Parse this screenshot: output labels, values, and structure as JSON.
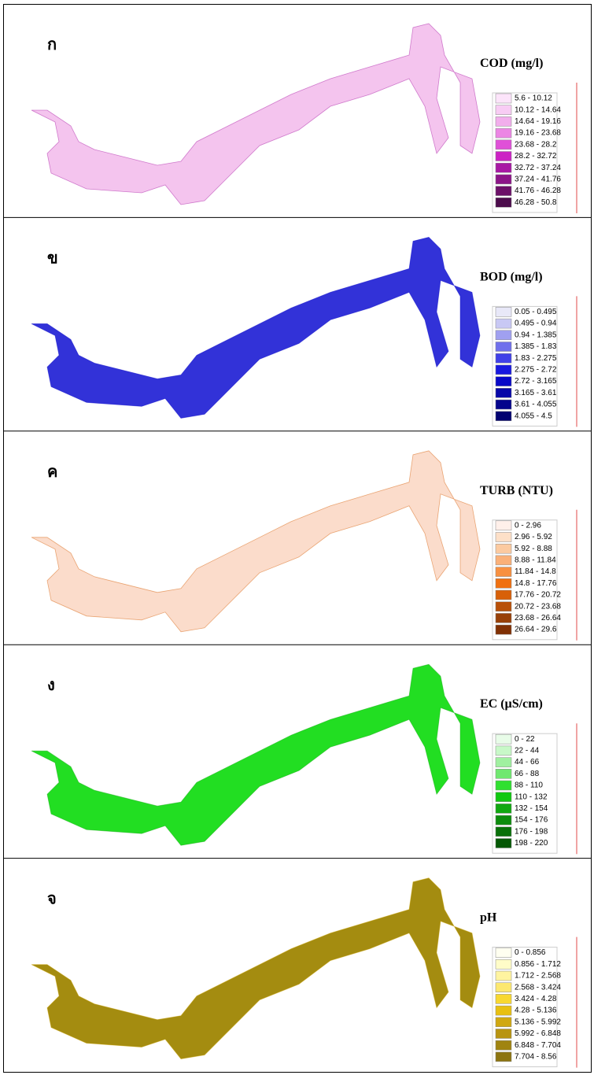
{
  "panels": [
    {
      "label": "ก",
      "title": "COD (mg/l)",
      "map_color": "#f4c4ee",
      "legend": [
        {
          "label": "5.6 - 10.12",
          "color": "#fce4fa"
        },
        {
          "label": "10.12 - 14.64",
          "color": "#f8ccf4"
        },
        {
          "label": "14.64 - 19.16",
          "color": "#f2aeec"
        },
        {
          "label": "19.16 - 23.68",
          "color": "#ec86e4"
        },
        {
          "label": "23.68 - 28.2",
          "color": "#e050d8"
        },
        {
          "label": "28.2 - 32.72",
          "color": "#cc22c4"
        },
        {
          "label": "32.72 - 37.24",
          "color": "#a818a4"
        },
        {
          "label": "37.24 - 41.76",
          "color": "#8c1488"
        },
        {
          "label": "41.76 - 46.28",
          "color": "#6c1068"
        },
        {
          "label": "46.28 - 50.8",
          "color": "#4c0c4c"
        }
      ]
    },
    {
      "label": "ข",
      "title": "BOD (mg/l)",
      "map_color": "#3232d8",
      "legend": [
        {
          "label": "0.05 - 0.495",
          "color": "#e8e8f8"
        },
        {
          "label": "0.495 - 0.94",
          "color": "#c8c8f4"
        },
        {
          "label": "0.94 - 1.385",
          "color": "#a0a0f0"
        },
        {
          "label": "1.385 - 1.83",
          "color": "#7070ec"
        },
        {
          "label": "1.83 - 2.275",
          "color": "#4040e8"
        },
        {
          "label": "2.275 - 2.72",
          "color": "#1818e0"
        },
        {
          "label": "2.72 - 3.165",
          "color": "#0808c8"
        },
        {
          "label": "3.165 - 3.61",
          "color": "#0606a8"
        },
        {
          "label": "3.61 - 4.055",
          "color": "#04048c"
        },
        {
          "label": "4.055 - 4.5",
          "color": "#020270"
        }
      ]
    },
    {
      "label": "ค",
      "title": "TURB (NTU)",
      "map_color": "#fbdccb",
      "legend": [
        {
          "label": "0 - 2.96",
          "color": "#fff0ea"
        },
        {
          "label": "2.96 - 5.92",
          "color": "#fde0c8"
        },
        {
          "label": "5.92 - 8.88",
          "color": "#fccaa0"
        },
        {
          "label": "8.88 - 11.84",
          "color": "#fab078"
        },
        {
          "label": "11.84 - 14.8",
          "color": "#f89040"
        },
        {
          "label": "14.8 - 17.76",
          "color": "#f07010"
        },
        {
          "label": "17.76 - 20.72",
          "color": "#d86008"
        },
        {
          "label": "20.72 - 23.68",
          "color": "#b85008"
        },
        {
          "label": "23.68 - 26.64",
          "color": "#984008"
        },
        {
          "label": "26.64 - 29.6",
          "color": "#803004"
        }
      ]
    },
    {
      "label": "ง",
      "title": "EC (µS/cm)",
      "map_color": "#22de22",
      "legend": [
        {
          "label": "0 - 22",
          "color": "#e8fce8"
        },
        {
          "label": "22 - 44",
          "color": "#c8f8c8"
        },
        {
          "label": "44 - 66",
          "color": "#a0f0a0"
        },
        {
          "label": "66 - 88",
          "color": "#70e870"
        },
        {
          "label": "88 - 110",
          "color": "#30e030"
        },
        {
          "label": "110 - 132",
          "color": "#10c810"
        },
        {
          "label": "132 - 154",
          "color": "#10a810"
        },
        {
          "label": "154 - 176",
          "color": "#0c8c0c"
        },
        {
          "label": "176 - 198",
          "color": "#087008"
        },
        {
          "label": "198 - 220",
          "color": "#045804"
        }
      ]
    },
    {
      "label": "จ",
      "title": "pH",
      "map_color": "#a48c10",
      "legend": [
        {
          "label": "0 - 0.856",
          "color": "#fffff0"
        },
        {
          "label": "0.856 - 1.712",
          "color": "#fffcc8"
        },
        {
          "label": "1.712 - 2.568",
          "color": "#fff4a0"
        },
        {
          "label": "2.568 - 3.424",
          "color": "#fce870"
        },
        {
          "label": "3.424 - 4.28",
          "color": "#f8d830"
        },
        {
          "label": "4.28 - 5.136",
          "color": "#e8c010"
        },
        {
          "label": "5.136 - 5.992",
          "color": "#d0a810"
        },
        {
          "label": "5.992 - 6.848",
          "color": "#b89410"
        },
        {
          "label": "6.848 - 7.704",
          "color": "#a08410"
        },
        {
          "label": "7.704 - 8.56",
          "color": "#8c7410"
        }
      ]
    }
  ]
}
